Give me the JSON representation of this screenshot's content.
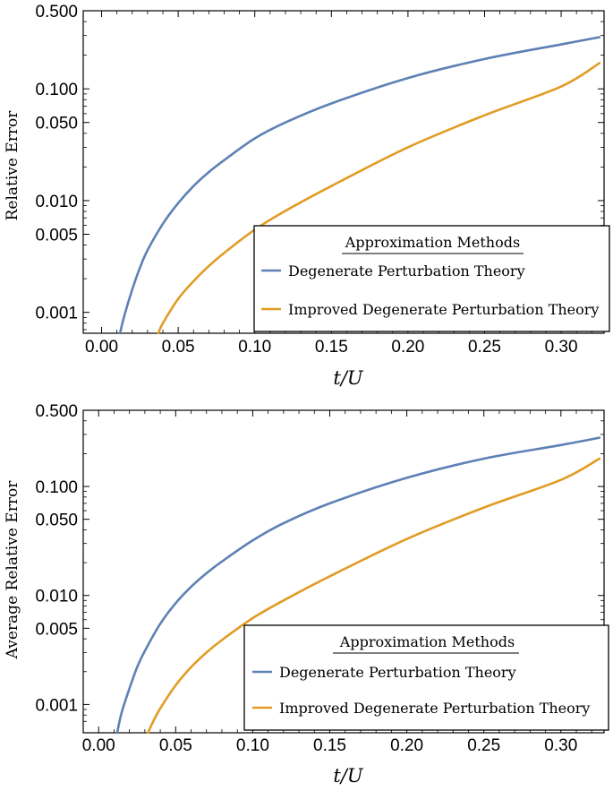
{
  "chart_data": [
    {
      "type": "line",
      "title": "",
      "xlabel": "t/U",
      "ylabel": "Relative Error",
      "yscale": "log",
      "xlim": [
        -0.012,
        0.328
      ],
      "ylim": [
        0.00065,
        0.5
      ],
      "xticks": [
        0.0,
        0.05,
        0.1,
        0.15,
        0.2,
        0.25,
        0.3
      ],
      "xtick_labels": [
        "0.00",
        "0.05",
        "0.10",
        "0.15",
        "0.20",
        "0.25",
        "0.30"
      ],
      "yticks": [
        0.001,
        0.005,
        0.01,
        0.05,
        0.1,
        0.5
      ],
      "ytick_labels": [
        "0.001",
        "0.005",
        "0.010",
        "0.050",
        "0.100",
        "0.500"
      ],
      "legend": {
        "title": "Approximation Methods",
        "position": "bottom-right"
      },
      "series": [
        {
          "name": "Degenerate Perturbation Theory",
          "color": "#5e81b5",
          "x": [
            0.012,
            0.015,
            0.02,
            0.025,
            0.03,
            0.04,
            0.05,
            0.06,
            0.07,
            0.08,
            0.1,
            0.12,
            0.15,
            0.2,
            0.25,
            0.3,
            0.325
          ],
          "y": [
            0.00065,
            0.00095,
            0.0016,
            0.0025,
            0.0036,
            0.0062,
            0.0095,
            0.0135,
            0.018,
            0.023,
            0.036,
            0.05,
            0.074,
            0.125,
            0.185,
            0.25,
            0.29
          ]
        },
        {
          "name": "Improved Degenerate Perturbation Theory",
          "color": "#e19c24",
          "x": [
            0.037,
            0.04,
            0.05,
            0.06,
            0.07,
            0.08,
            0.1,
            0.12,
            0.15,
            0.2,
            0.25,
            0.3,
            0.325
          ],
          "y": [
            0.00065,
            0.0008,
            0.00132,
            0.0019,
            0.0026,
            0.0034,
            0.0055,
            0.0081,
            0.0135,
            0.03,
            0.058,
            0.105,
            0.17
          ]
        }
      ]
    },
    {
      "type": "line",
      "title": "",
      "xlabel": "t/U",
      "ylabel": "Average Relative Error",
      "yscale": "log",
      "xlim": [
        -0.01,
        0.328
      ],
      "ylim": [
        0.00055,
        0.5
      ],
      "xticks": [
        0.0,
        0.05,
        0.1,
        0.15,
        0.2,
        0.25,
        0.3
      ],
      "xtick_labels": [
        "0.00",
        "0.05",
        "0.10",
        "0.15",
        "0.20",
        "0.25",
        "0.30"
      ],
      "yticks": [
        0.001,
        0.005,
        0.01,
        0.05,
        0.1,
        0.5
      ],
      "ytick_labels": [
        "0.001",
        "0.005",
        "0.010",
        "0.050",
        "0.100",
        "0.500"
      ],
      "legend": {
        "title": "Approximation Methods",
        "position": "bottom-right"
      },
      "series": [
        {
          "name": "Degenerate Perturbation Theory",
          "color": "#5e81b5",
          "x": [
            0.012,
            0.015,
            0.02,
            0.025,
            0.03,
            0.04,
            0.05,
            0.06,
            0.07,
            0.08,
            0.1,
            0.12,
            0.15,
            0.2,
            0.25,
            0.3,
            0.325
          ],
          "y": [
            0.00055,
            0.00085,
            0.0014,
            0.0022,
            0.0031,
            0.0055,
            0.0085,
            0.012,
            0.016,
            0.0205,
            0.032,
            0.046,
            0.07,
            0.12,
            0.18,
            0.24,
            0.28
          ]
        },
        {
          "name": "Improved Degenerate Perturbation Theory",
          "color": "#e19c24",
          "x": [
            0.032,
            0.035,
            0.04,
            0.05,
            0.06,
            0.07,
            0.08,
            0.1,
            0.12,
            0.15,
            0.2,
            0.25,
            0.3,
            0.325
          ],
          "y": [
            0.00055,
            0.00068,
            0.00092,
            0.0015,
            0.0022,
            0.003,
            0.0039,
            0.0062,
            0.009,
            0.015,
            0.033,
            0.064,
            0.115,
            0.18
          ]
        }
      ]
    }
  ]
}
